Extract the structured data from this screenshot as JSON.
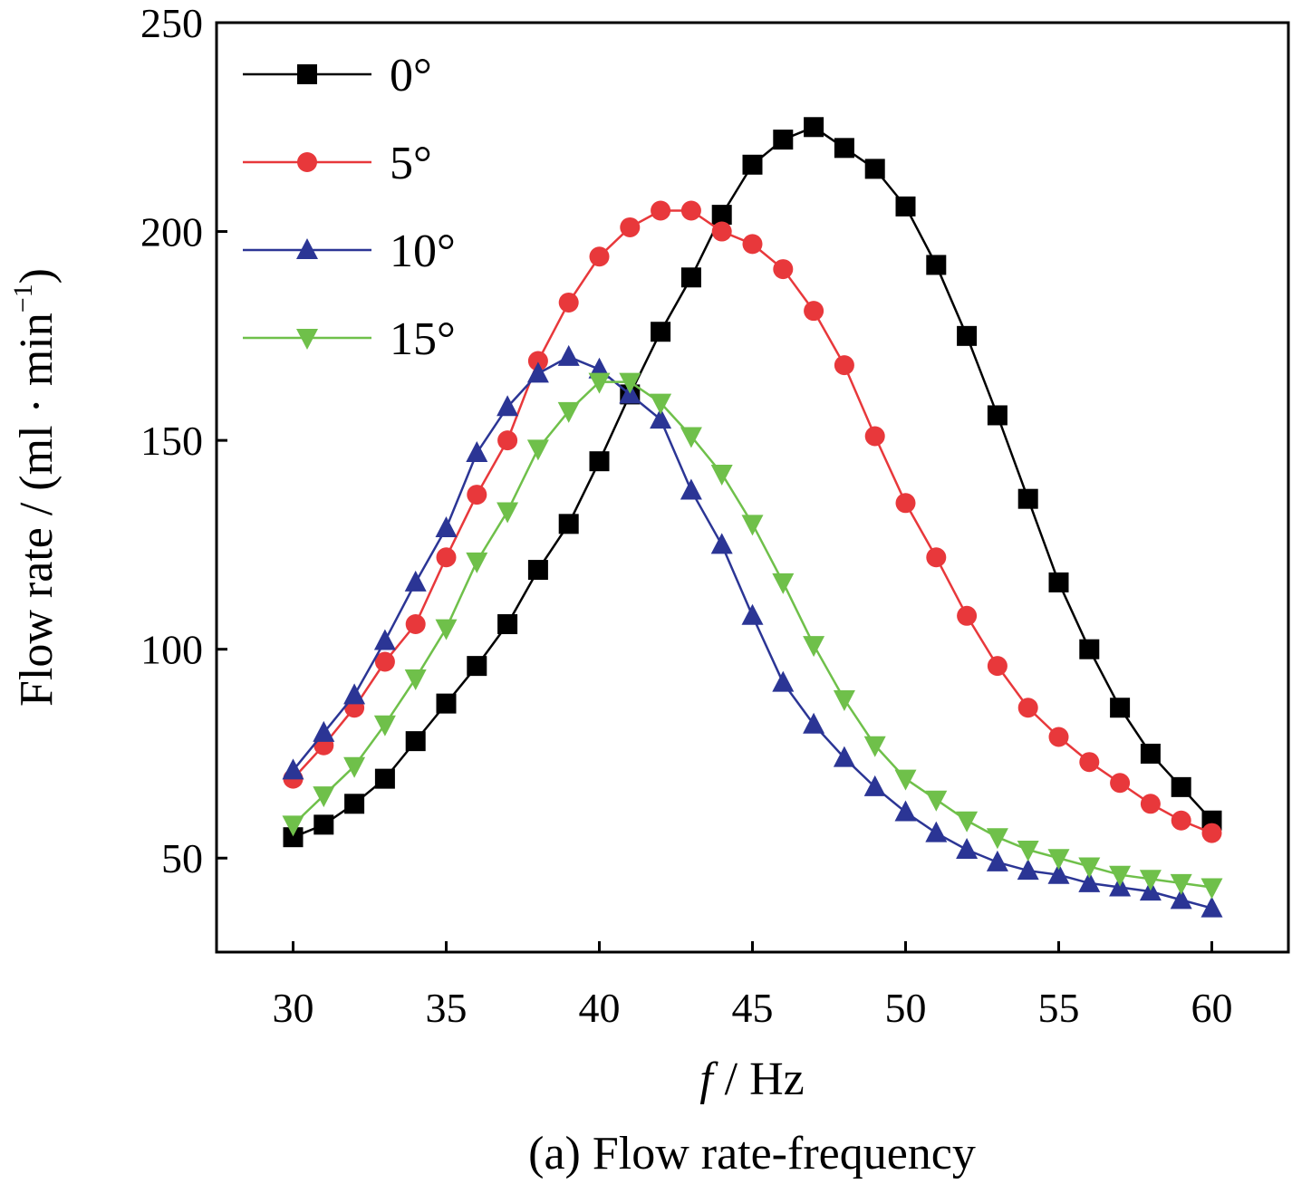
{
  "chart_data": {
    "type": "line",
    "title": "",
    "caption": "(a) Flow rate-frequency",
    "xlabel_var": "f",
    "xlabel_unit": " / Hz",
    "ylabel_main": "Flow rate / (ml · min",
    "ylabel_sup": "−1",
    "ylabel_close": ")",
    "xlim": [
      27.5,
      62.5
    ],
    "ylim": [
      27.5,
      250
    ],
    "xticks": [
      30,
      35,
      40,
      45,
      50,
      55,
      60
    ],
    "yticks": [
      50,
      100,
      150,
      200,
      250
    ],
    "grid": false,
    "legend_position": "top-left",
    "x": [
      30,
      31,
      32,
      33,
      34,
      35,
      36,
      37,
      38,
      39,
      40,
      41,
      42,
      43,
      44,
      45,
      46,
      47,
      48,
      49,
      50,
      51,
      52,
      53,
      54,
      55,
      56,
      57,
      58,
      59,
      60
    ],
    "series": [
      {
        "name": "0°",
        "color": "#000000",
        "marker": "square",
        "values": [
          55,
          58,
          63,
          69,
          78,
          87,
          96,
          106,
          119,
          130,
          145,
          161,
          176,
          189,
          204,
          216,
          222,
          225,
          220,
          215,
          206,
          192,
          175,
          156,
          136,
          116,
          100,
          86,
          75,
          67,
          59
        ]
      },
      {
        "name": "5°",
        "color": "#e8383b",
        "marker": "circle",
        "values": [
          69,
          77,
          86,
          97,
          106,
          122,
          137,
          150,
          169,
          183,
          194,
          201,
          205,
          205,
          200,
          197,
          191,
          181,
          168,
          151,
          135,
          122,
          108,
          96,
          86,
          79,
          73,
          68,
          63,
          59,
          56
        ]
      },
      {
        "name": "10°",
        "color": "#2b3595",
        "marker": "triangle-up",
        "values": [
          71,
          80,
          89,
          102,
          116,
          129,
          147,
          158,
          166,
          170,
          167,
          161,
          155,
          138,
          125,
          108,
          92,
          82,
          74,
          67,
          61,
          56,
          52,
          49,
          47,
          46,
          44,
          43,
          42,
          40,
          38
        ]
      },
      {
        "name": "15°",
        "color": "#6fc04a",
        "marker": "triangle-down",
        "values": [
          58,
          65,
          72,
          82,
          93,
          105,
          121,
          133,
          148,
          157,
          164,
          164,
          159,
          151,
          142,
          130,
          116,
          101,
          88,
          77,
          69,
          64,
          59,
          55,
          52,
          50,
          48,
          46,
          45,
          44,
          43
        ]
      }
    ]
  }
}
